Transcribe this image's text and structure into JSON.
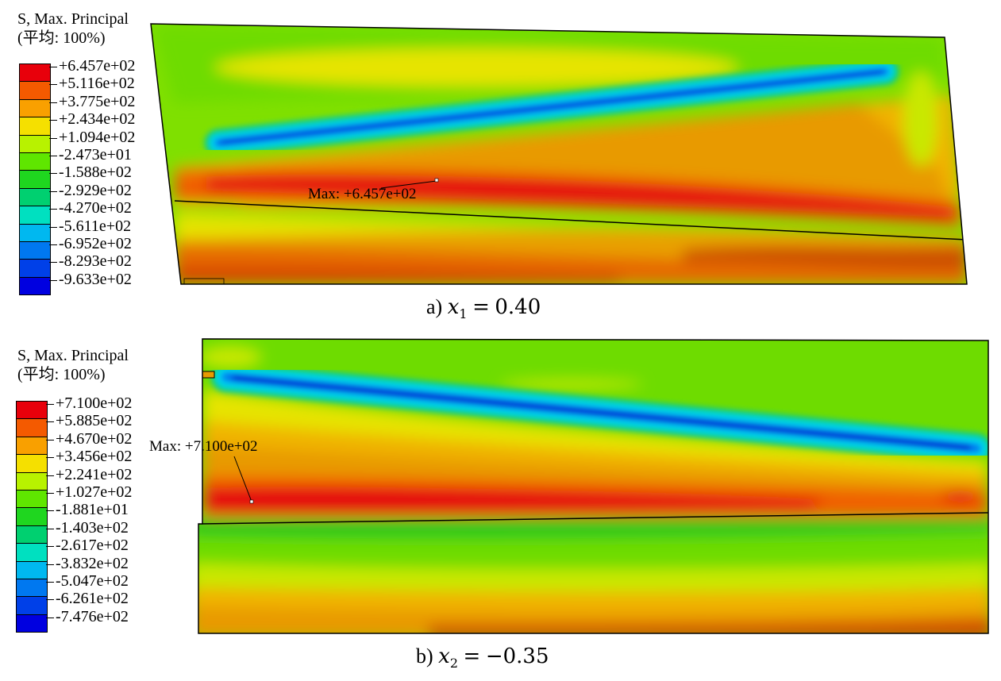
{
  "panels": [
    {
      "id": "a",
      "legend": {
        "title": "S, Max. Principal",
        "averaging": "(平均: 100%)",
        "ticks": [
          "+6.457e+02",
          "+5.116e+02",
          "+3.775e+02",
          "+2.434e+02",
          "+1.094e+02",
          "-2.473e+01",
          "-1.588e+02",
          "-2.929e+02",
          "-4.270e+02",
          "-5.611e+02",
          "-6.952e+02",
          "-8.293e+02",
          "-9.633e+02"
        ],
        "colors": [
          "#e8000b",
          "#f45a00",
          "#f9a000",
          "#f5e000",
          "#b8f200",
          "#5fe600",
          "#1fd61f",
          "#00d070",
          "#00e0c0",
          "#00b8f0",
          "#0078f0",
          "#0040e8",
          "#0000e0"
        ]
      },
      "max_label": "Max: +6.457e+02",
      "caption": {
        "prefix": "a)",
        "var": "x",
        "sub": "1",
        "eq": "=",
        "value": "0.40"
      }
    },
    {
      "id": "b",
      "legend": {
        "title": "S, Max. Principal",
        "averaging": "(平均: 100%)",
        "ticks": [
          "+7.100e+02",
          "+5.885e+02",
          "+4.670e+02",
          "+3.456e+02",
          "+2.241e+02",
          "+1.027e+02",
          "-1.881e+01",
          "-1.403e+02",
          "-2.617e+02",
          "-3.832e+02",
          "-5.047e+02",
          "-6.261e+02",
          "-7.476e+02"
        ],
        "colors": [
          "#e8000b",
          "#f45a00",
          "#f9a000",
          "#f5e000",
          "#b8f200",
          "#5fe600",
          "#1fd61f",
          "#00d070",
          "#00e0c0",
          "#00b8f0",
          "#0078f0",
          "#0040e8",
          "#0000e0"
        ]
      },
      "max_label": "Max: +7.100e+02",
      "caption": {
        "prefix": "b)",
        "var": "x",
        "sub": "2",
        "eq": "=",
        "value": "−0.35"
      }
    }
  ]
}
